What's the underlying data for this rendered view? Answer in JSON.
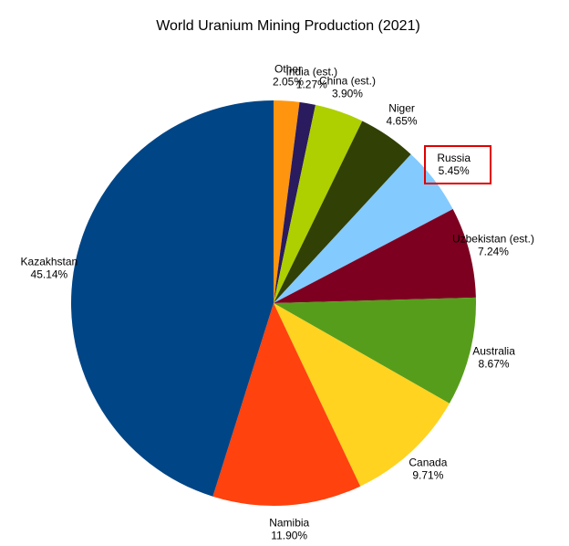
{
  "chart_data": {
    "type": "pie",
    "title": "World Uranium Mining Production (2021)",
    "categories": [
      "Other",
      "India (est.)",
      "China (est.)",
      "Niger",
      "Russia",
      "Uzbekistan (est.)",
      "Australia",
      "Canada",
      "Namibia",
      "Kazakhstan"
    ],
    "values": [
      2.05,
      1.27,
      3.9,
      4.65,
      5.45,
      7.24,
      8.67,
      9.71,
      11.9,
      45.14
    ],
    "value_labels": [
      "2.05%",
      "1.27%",
      "3.90%",
      "4.65%",
      "5.45%",
      "7.24%",
      "8.67%",
      "9.71%",
      "11.90%",
      "45.14%"
    ],
    "colors": [
      "#ff950e",
      "#2a1a5e",
      "#aecf00",
      "#314004",
      "#83caff",
      "#7e0021",
      "#579d1c",
      "#ffd320",
      "#ff420e",
      "#004586"
    ]
  }
}
